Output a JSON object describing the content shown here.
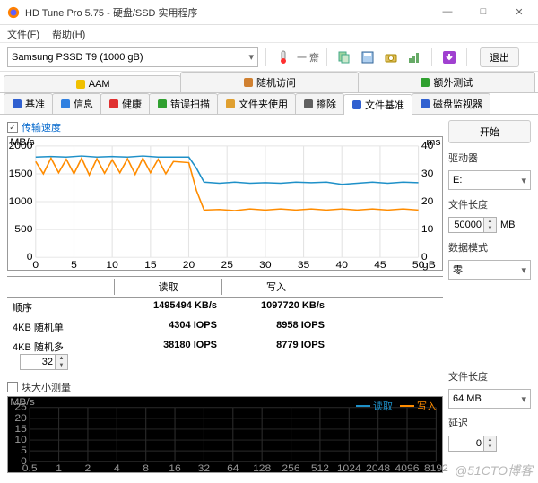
{
  "window": {
    "title": "HD Tune Pro 5.75 - 硬盘/SSD 实用程序",
    "icon_color_a": "#ff8000",
    "icon_color_b": "#6060ff"
  },
  "menu": {
    "file": "文件(F)",
    "help": "帮助(H)"
  },
  "toolbar": {
    "drive": "Samsung PSSD T9 (1000 gB)",
    "exit": "退出",
    "temp_label": "一 齋",
    "icons": [
      "temp",
      "bar",
      "copy",
      "save",
      "cam",
      "chart",
      "down"
    ]
  },
  "tabrow1": [
    {
      "label": "AAM",
      "icon": "speaker",
      "color": "#f0c000"
    },
    {
      "label": "随机访问",
      "icon": "disk",
      "color": "#d08030"
    },
    {
      "label": "额外测试",
      "icon": "gear",
      "color": "#30a030"
    }
  ],
  "tabrow2": [
    {
      "label": "基准",
      "icon": "bar",
      "color": "#3060d0"
    },
    {
      "label": "信息",
      "icon": "info",
      "color": "#3080e0"
    },
    {
      "label": "健康",
      "icon": "plus",
      "color": "#e03030"
    },
    {
      "label": "错误扫描",
      "icon": "search",
      "color": "#30a030"
    },
    {
      "label": "文件夹使用",
      "icon": "folder",
      "color": "#e0a030"
    },
    {
      "label": "擦除",
      "icon": "erase",
      "color": "#606060"
    },
    {
      "label": "文件基准",
      "icon": "filebar",
      "color": "#3060d0",
      "active": true
    },
    {
      "label": "磁盘监视器",
      "icon": "eye",
      "color": "#3060d0"
    }
  ],
  "panel1": {
    "check_label": "传输速度",
    "chart": {
      "y_left": {
        "label": "MB/s",
        "ticks": [
          0,
          500,
          1000,
          1500,
          2000
        ]
      },
      "y_right": {
        "label": "ms",
        "ticks": [
          0,
          10,
          20,
          30,
          40
        ]
      },
      "x": {
        "label": "gB",
        "ticks": [
          0,
          5,
          10,
          15,
          20,
          25,
          30,
          35,
          40,
          45,
          50
        ]
      },
      "colors": {
        "read": "#1e90c8",
        "write": "#ff8c00",
        "grid": "#e4e4e4",
        "bg": "#ffffff"
      },
      "read_series": [
        [
          0,
          1800
        ],
        [
          2,
          1810
        ],
        [
          4,
          1800
        ],
        [
          6,
          1820
        ],
        [
          8,
          1800
        ],
        [
          10,
          1810
        ],
        [
          12,
          1800
        ],
        [
          14,
          1820
        ],
        [
          16,
          1800
        ],
        [
          18,
          1800
        ],
        [
          20,
          1800
        ],
        [
          21,
          1600
        ],
        [
          22,
          1350
        ],
        [
          24,
          1330
        ],
        [
          26,
          1350
        ],
        [
          28,
          1330
        ],
        [
          30,
          1340
        ],
        [
          32,
          1330
        ],
        [
          34,
          1350
        ],
        [
          36,
          1340
        ],
        [
          38,
          1350
        ],
        [
          40,
          1310
        ],
        [
          42,
          1330
        ],
        [
          44,
          1350
        ],
        [
          46,
          1330
        ],
        [
          48,
          1350
        ],
        [
          50,
          1340
        ]
      ],
      "write_series": [
        [
          0,
          1720
        ],
        [
          1,
          1500
        ],
        [
          2,
          1780
        ],
        [
          3,
          1520
        ],
        [
          4,
          1760
        ],
        [
          5,
          1500
        ],
        [
          6,
          1780
        ],
        [
          7,
          1480
        ],
        [
          8,
          1770
        ],
        [
          9,
          1510
        ],
        [
          10,
          1750
        ],
        [
          11,
          1520
        ],
        [
          12,
          1770
        ],
        [
          13,
          1490
        ],
        [
          14,
          1780
        ],
        [
          15,
          1520
        ],
        [
          16,
          1760
        ],
        [
          17,
          1500
        ],
        [
          18,
          1720
        ],
        [
          19,
          1710
        ],
        [
          20,
          1700
        ],
        [
          21,
          1200
        ],
        [
          22,
          850
        ],
        [
          24,
          860
        ],
        [
          26,
          840
        ],
        [
          28,
          870
        ],
        [
          30,
          850
        ],
        [
          32,
          870
        ],
        [
          34,
          850
        ],
        [
          36,
          870
        ],
        [
          38,
          850
        ],
        [
          40,
          870
        ],
        [
          42,
          850
        ],
        [
          44,
          870
        ],
        [
          46,
          850
        ],
        [
          48,
          870
        ],
        [
          50,
          850
        ]
      ]
    },
    "table": {
      "headers": [
        "",
        "读取",
        "写入"
      ],
      "rows": [
        {
          "label": "顺序",
          "read": "1495494 KB/s",
          "write": "1097720 KB/s"
        },
        {
          "label": "4KB 随机单",
          "read": "4304 IOPS",
          "write": "8958 IOPS"
        },
        {
          "label": "4KB 随机多",
          "read": "38180 IOPS",
          "write": "8779 IOPS",
          "spin": "32"
        }
      ]
    }
  },
  "panel2": {
    "check_label": "块大小测量",
    "legend": {
      "read": "读取",
      "write": "写入"
    },
    "chart": {
      "y_left": {
        "label": "MB/s",
        "ticks": [
          0,
          5,
          10,
          15,
          20,
          25
        ]
      },
      "x": {
        "ticks": [
          "0.5",
          "1",
          "2",
          "4",
          "8",
          "16",
          "32",
          "64",
          "128",
          "256",
          "512",
          "1024",
          "2048",
          "4096",
          "8192"
        ]
      },
      "colors": {
        "read": "#1e90c8",
        "write": "#ff8c00",
        "grid": "#2a2a2a",
        "bg": "#000000"
      }
    }
  },
  "side": {
    "start": "开始",
    "drive_l": "驱动器",
    "drive_v": "E:",
    "flen_l": "文件长度",
    "flen_v": "50000",
    "flen_u": "MB",
    "mode_l": "数据模式",
    "mode_v": "零",
    "flen2_l": "文件长度",
    "flen2_v": "64 MB",
    "delay_l": "延迟",
    "delay_v": "0"
  },
  "watermark": "@51CTO博客"
}
